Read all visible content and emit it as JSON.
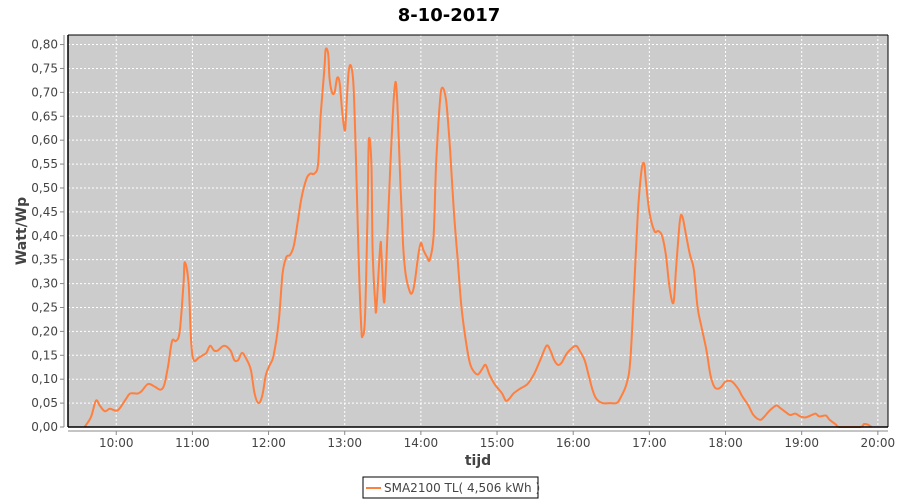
{
  "chart_data": {
    "type": "line",
    "title": "8-10-2017",
    "xlabel": "tijd",
    "ylabel": "Watt/Wp",
    "xlim": [
      "9:22",
      "20:08"
    ],
    "ylim": [
      0,
      0.82
    ],
    "x_ticks": [
      "10:00",
      "11:00",
      "12:00",
      "13:00",
      "14:00",
      "15:00",
      "16:00",
      "17:00",
      "18:00",
      "19:00",
      "20:00"
    ],
    "y_ticks": [
      "0,00",
      "0,05",
      "0,10",
      "0,15",
      "0,20",
      "0,25",
      "0,30",
      "0,35",
      "0,40",
      "0,45",
      "0,50",
      "0,55",
      "0,60",
      "0,65",
      "0,70",
      "0,75",
      "0,80"
    ],
    "grid": true,
    "legend_position": "bottom",
    "background_color": "#cccccc",
    "series": [
      {
        "name": "SMA2100 TL( 4,506 kWh )",
        "color": "#ff7f3f",
        "x": [
          "9:35",
          "9:40",
          "9:44",
          "9:47",
          "9:51",
          "9:55",
          "10:00",
          "10:03",
          "10:08",
          "10:11",
          "10:17",
          "10:20",
          "10:25",
          "10:30",
          "10:35",
          "10:38",
          "10:41",
          "10:44",
          "10:47",
          "10:50",
          "10:53",
          "10:54",
          "10:57",
          "10:59",
          "11:01",
          "11:05",
          "11:08",
          "11:11",
          "11:14",
          "11:17",
          "11:20",
          "11:25",
          "11:30",
          "11:33",
          "11:36",
          "11:39",
          "11:42",
          "11:46",
          "11:49",
          "11:52",
          "11:55",
          "11:58",
          "12:01",
          "12:04",
          "12:08",
          "12:11",
          "12:14",
          "12:17",
          "12:20",
          "12:23",
          "12:26",
          "12:30",
          "12:33",
          "12:36",
          "12:39",
          "12:41",
          "12:44",
          "12:45",
          "12:47",
          "12:48",
          "12:50",
          "12:52",
          "12:54",
          "12:56",
          "12:58",
          "13:00",
          "13:01",
          "13:03",
          "13:05",
          "13:07",
          "13:09",
          "13:11",
          "13:13",
          "13:14",
          "13:16",
          "13:18",
          "13:19",
          "13:21",
          "13:22",
          "13:24",
          "13:25",
          "13:28",
          "13:29",
          "13:31",
          "13:33",
          "13:36",
          "13:39",
          "13:41",
          "13:44",
          "13:46",
          "13:48",
          "13:51",
          "13:53",
          "13:55",
          "13:58",
          "14:00",
          "14:02",
          "14:05",
          "14:07",
          "14:10",
          "14:12",
          "14:15",
          "14:17",
          "14:20",
          "14:23",
          "14:26",
          "14:29",
          "14:32",
          "14:36",
          "14:39",
          "14:42",
          "14:45",
          "14:48",
          "14:51",
          "14:54",
          "14:58",
          "15:01",
          "15:04",
          "15:07",
          "15:10",
          "15:13",
          "15:18",
          "15:24",
          "15:29",
          "15:34",
          "15:39",
          "15:42",
          "15:45",
          "15:48",
          "15:51",
          "15:54",
          "15:57",
          "16:02",
          "16:05",
          "16:09",
          "16:12",
          "16:15",
          "16:18",
          "16:23",
          "16:29",
          "16:34",
          "16:37",
          "16:42",
          "16:45",
          "16:48",
          "16:51",
          "16:54",
          "16:56",
          "16:57",
          "17:00",
          "17:04",
          "17:07",
          "17:10",
          "17:13",
          "17:16",
          "17:19",
          "17:21",
          "17:24",
          "17:26",
          "17:29",
          "17:32",
          "17:35",
          "17:38",
          "17:41",
          "17:45",
          "17:48",
          "17:51",
          "17:54",
          "17:57",
          "18:00",
          "18:05",
          "18:10",
          "18:13",
          "18:18",
          "18:22",
          "18:27",
          "18:30",
          "18:35",
          "18:40",
          "18:43",
          "18:48",
          "18:51",
          "18:55",
          "18:59",
          "19:03",
          "19:08",
          "19:11",
          "19:14",
          "19:19",
          "19:22",
          "19:27",
          "19:30",
          "19:46",
          "19:49",
          "19:52",
          "19:55"
        ],
        "y": [
          0.0,
          0.02,
          0.055,
          0.045,
          0.033,
          0.038,
          0.034,
          0.04,
          0.06,
          0.07,
          0.07,
          0.075,
          0.09,
          0.085,
          0.078,
          0.09,
          0.13,
          0.18,
          0.18,
          0.2,
          0.3,
          0.345,
          0.3,
          0.18,
          0.14,
          0.145,
          0.15,
          0.155,
          0.17,
          0.16,
          0.16,
          0.17,
          0.16,
          0.14,
          0.14,
          0.155,
          0.145,
          0.12,
          0.07,
          0.05,
          0.065,
          0.11,
          0.13,
          0.15,
          0.22,
          0.32,
          0.355,
          0.36,
          0.38,
          0.43,
          0.48,
          0.52,
          0.53,
          0.53,
          0.55,
          0.65,
          0.75,
          0.79,
          0.78,
          0.73,
          0.7,
          0.7,
          0.73,
          0.72,
          0.66,
          0.62,
          0.65,
          0.74,
          0.755,
          0.71,
          0.55,
          0.35,
          0.21,
          0.19,
          0.23,
          0.45,
          0.6,
          0.55,
          0.37,
          0.26,
          0.25,
          0.38,
          0.36,
          0.26,
          0.36,
          0.55,
          0.7,
          0.7,
          0.5,
          0.38,
          0.32,
          0.285,
          0.28,
          0.3,
          0.36,
          0.385,
          0.37,
          0.355,
          0.35,
          0.4,
          0.55,
          0.68,
          0.71,
          0.68,
          0.58,
          0.45,
          0.35,
          0.25,
          0.17,
          0.13,
          0.115,
          0.11,
          0.12,
          0.13,
          0.11,
          0.09,
          0.08,
          0.07,
          0.055,
          0.06,
          0.07,
          0.08,
          0.09,
          0.11,
          0.14,
          0.17,
          0.16,
          0.14,
          0.13,
          0.135,
          0.15,
          0.16,
          0.17,
          0.16,
          0.14,
          0.11,
          0.08,
          0.06,
          0.05,
          0.05,
          0.05,
          0.06,
          0.09,
          0.14,
          0.29,
          0.45,
          0.54,
          0.55,
          0.52,
          0.45,
          0.41,
          0.41,
          0.4,
          0.36,
          0.29,
          0.26,
          0.33,
          0.43,
          0.44,
          0.4,
          0.36,
          0.33,
          0.25,
          0.21,
          0.16,
          0.11,
          0.085,
          0.08,
          0.085,
          0.095,
          0.095,
          0.08,
          0.065,
          0.045,
          0.025,
          0.015,
          0.02,
          0.035,
          0.045,
          0.04,
          0.03,
          0.025,
          0.028,
          0.022,
          0.02,
          0.025,
          0.028,
          0.022,
          0.024,
          0.015,
          0.005,
          0.0,
          0.0,
          0.006,
          0.005,
          0.0
        ]
      }
    ]
  }
}
